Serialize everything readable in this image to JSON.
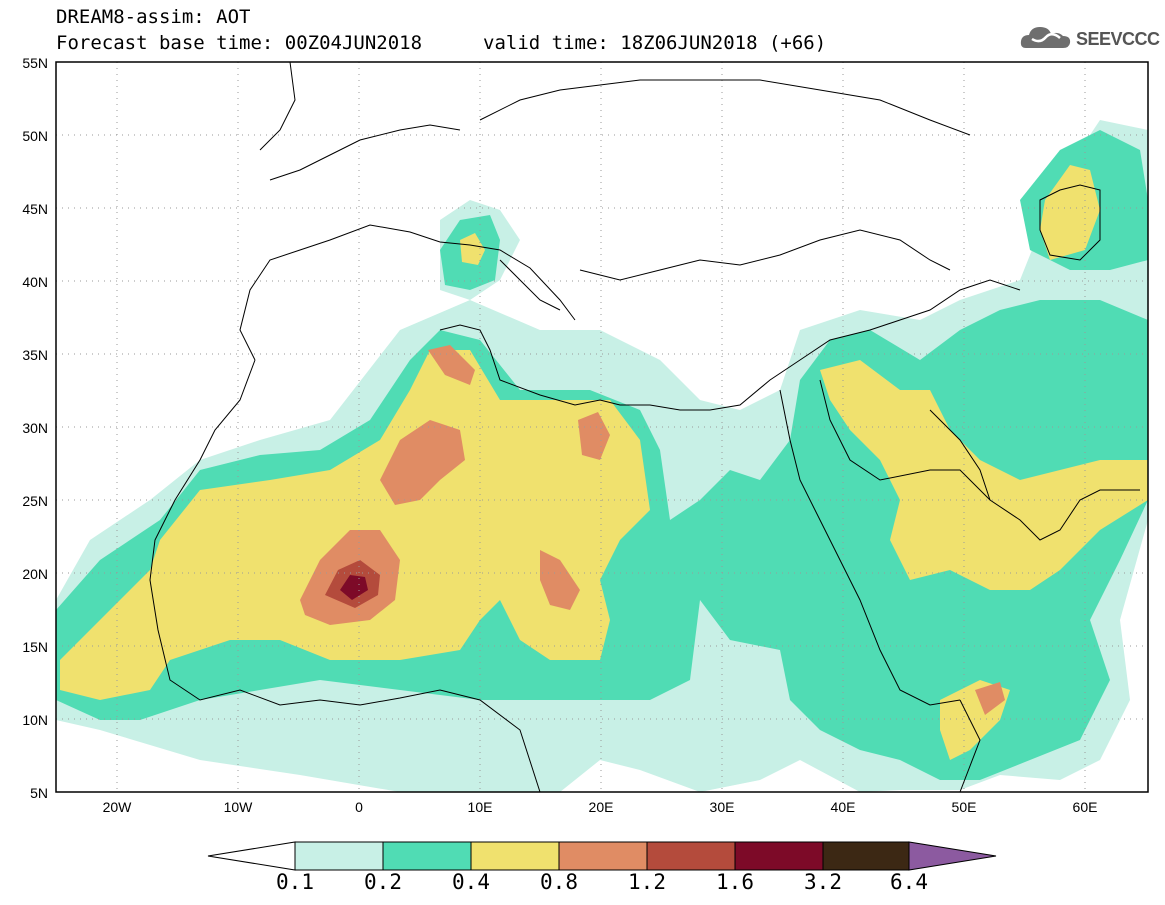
{
  "header": {
    "title": "DREAM8-assim: AOT",
    "base_time": "Forecast base time: 00Z04JUN2018",
    "valid_time": "valid time: 18Z06JUN2018 (+66)",
    "logo_text": "SEEVCCC",
    "logo_icon": "cloud-icon"
  },
  "map": {
    "lon_range": [
      -25,
      65
    ],
    "lat_range": [
      5,
      55
    ],
    "lat_ticks": [
      "55N",
      "50N",
      "45N",
      "40N",
      "35N",
      "30N",
      "25N",
      "20N",
      "15N",
      "10N",
      "5N"
    ],
    "lon_ticks": [
      "20W",
      "10W",
      "0",
      "10E",
      "20E",
      "30E",
      "40E",
      "50E",
      "60E"
    ],
    "grid": "dotted"
  },
  "colorbar": {
    "labels": [
      "0.1",
      "0.2",
      "0.4",
      "0.8",
      "1.2",
      "1.6",
      "3.2",
      "6.4"
    ],
    "colors": [
      "#ffffff",
      "#c8f0e6",
      "#50dcb4",
      "#f0e16e",
      "#e08c64",
      "#b44b3c",
      "#7d0a28",
      "#3c2814",
      "#8c5aa0"
    ]
  }
}
